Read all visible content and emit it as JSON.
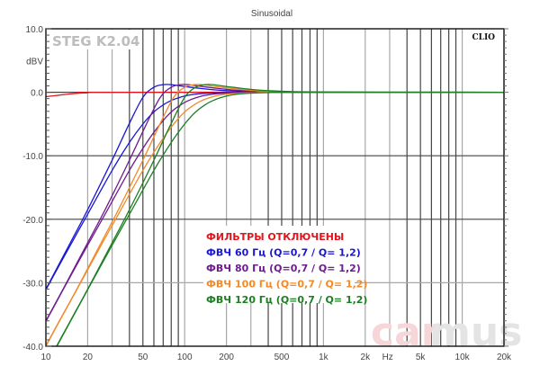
{
  "chart_data": {
    "type": "line",
    "title": "Sinusoidal",
    "ylabel": "dBV",
    "xlabel": "Hz",
    "xscale": "log",
    "xlim": [
      10,
      20000
    ],
    "ylim": [
      -40,
      10
    ],
    "grid": true,
    "y_ticks": [
      {
        "value": 10,
        "label": "10.0"
      },
      {
        "value": 0,
        "label": "0.0"
      },
      {
        "value": -10,
        "label": "-10.0"
      },
      {
        "value": -20,
        "label": "-20.0"
      },
      {
        "value": -30,
        "label": "-30.0"
      },
      {
        "value": -40,
        "label": "-40.0"
      }
    ],
    "y_unit_label": {
      "value": 5,
      "label": "dBV"
    },
    "x_ticks": [
      {
        "value": 10,
        "label": "10"
      },
      {
        "value": 20,
        "label": "20"
      },
      {
        "value": 50,
        "label": "50"
      },
      {
        "value": 100,
        "label": "100"
      },
      {
        "value": 200,
        "label": "200"
      },
      {
        "value": 500,
        "label": "500"
      },
      {
        "value": 1000,
        "label": "1k"
      },
      {
        "value": 2000,
        "label": "2k"
      },
      {
        "value": 5000,
        "label": "5k"
      },
      {
        "value": 10000,
        "label": "10k"
      },
      {
        "value": 20000,
        "label": "20k"
      }
    ],
    "x_unit_label": {
      "value": 2900,
      "label": "Hz"
    },
    "annotations": {
      "top_left": "STEG K2.04",
      "top_right": "CLIO",
      "watermark_a": "car",
      "watermark_b": "mus"
    },
    "legend_position": "center-bottom",
    "legend": [
      {
        "label": "ФИЛЬТРЫ ОТКЛЮЧЕНЫ",
        "color": "#e3141b"
      },
      {
        "label": "ФВЧ 60 Гц (Q=0,7 / Q= 1,2)",
        "color": "#1a17d6"
      },
      {
        "label": "ФВЧ 80 Гц (Q=0,7 / Q= 1,2)",
        "color": "#6e1c8e"
      },
      {
        "label": "ФВЧ 100 Гц (Q=0,7 / Q= 1,2)",
        "color": "#f28a2a"
      },
      {
        "label": "ФВЧ 120 Гц (Q=0,7 / Q= 1,2)",
        "color": "#1c7f22"
      }
    ],
    "series": [
      {
        "name": "filters-off",
        "color": "#e3141b",
        "points": [
          [
            10,
            -0.7
          ],
          [
            12.5,
            -0.45
          ],
          [
            16,
            -0.2
          ],
          [
            20,
            -0.08
          ],
          [
            30,
            0
          ],
          [
            20000,
            0
          ]
        ]
      },
      {
        "name": "hpf-60-q0.7",
        "color": "#1a17d6",
        "points": [
          [
            10,
            -31.1
          ],
          [
            15,
            -24.1
          ],
          [
            20,
            -19.2
          ],
          [
            30,
            -12.3
          ],
          [
            40,
            -7.9
          ],
          [
            50,
            -5.0
          ],
          [
            60,
            -3.1
          ],
          [
            70,
            -2.0
          ],
          [
            80,
            -1.3
          ],
          [
            100,
            -0.6
          ],
          [
            120,
            -0.3
          ],
          [
            150,
            -0.14
          ],
          [
            200,
            -0.05
          ],
          [
            300,
            0
          ],
          [
            500,
            0
          ],
          [
            20000,
            0
          ]
        ]
      },
      {
        "name": "hpf-60-q1.2",
        "color": "#1a17d6",
        "points": [
          [
            10,
            -31.0
          ],
          [
            15,
            -23.7
          ],
          [
            20,
            -18.5
          ],
          [
            30,
            -10.7
          ],
          [
            40,
            -4.9
          ],
          [
            50,
            -0.8
          ],
          [
            60,
            0.8
          ],
          [
            70,
            1.2
          ],
          [
            80,
            1.2
          ],
          [
            100,
            0.9
          ],
          [
            120,
            0.7
          ],
          [
            150,
            0.45
          ],
          [
            200,
            0.25
          ],
          [
            300,
            0.1
          ],
          [
            500,
            0.04
          ],
          [
            1200,
            0
          ],
          [
            20000,
            0
          ]
        ]
      },
      {
        "name": "hpf-80-q0.7",
        "color": "#6e1c8e",
        "points": [
          [
            10,
            -36.1
          ],
          [
            13.3,
            -31.1
          ],
          [
            20,
            -24.1
          ],
          [
            26.7,
            -19.2
          ],
          [
            40,
            -12.3
          ],
          [
            53.3,
            -7.9
          ],
          [
            66.7,
            -5.0
          ],
          [
            80,
            -3.1
          ],
          [
            93.3,
            -2.0
          ],
          [
            106.7,
            -1.3
          ],
          [
            133.3,
            -0.6
          ],
          [
            160,
            -0.3
          ],
          [
            200,
            -0.14
          ],
          [
            266.7,
            -0.05
          ],
          [
            400,
            0
          ],
          [
            20000,
            0
          ]
        ]
      },
      {
        "name": "hpf-80-q1.2",
        "color": "#6e1c8e",
        "points": [
          [
            10,
            -36.0
          ],
          [
            13.3,
            -31.0
          ],
          [
            20,
            -23.7
          ],
          [
            26.7,
            -18.5
          ],
          [
            40,
            -10.7
          ],
          [
            53.3,
            -4.9
          ],
          [
            66.7,
            -0.8
          ],
          [
            80,
            0.8
          ],
          [
            93.3,
            1.2
          ],
          [
            106.7,
            1.2
          ],
          [
            133.3,
            0.9
          ],
          [
            160,
            0.7
          ],
          [
            200,
            0.45
          ],
          [
            266.7,
            0.25
          ],
          [
            400,
            0.1
          ],
          [
            666.7,
            0.04
          ],
          [
            1600,
            0
          ],
          [
            20000,
            0
          ]
        ]
      },
      {
        "name": "hpf-100-q0.7",
        "color": "#f28a2a",
        "points": [
          [
            10,
            -40.0
          ],
          [
            12.5,
            -36.1
          ],
          [
            16.7,
            -31.1
          ],
          [
            25,
            -24.1
          ],
          [
            33.3,
            -19.2
          ],
          [
            50,
            -12.3
          ],
          [
            66.7,
            -7.9
          ],
          [
            83.3,
            -5.0
          ],
          [
            100,
            -3.1
          ],
          [
            116.7,
            -2.0
          ],
          [
            133.3,
            -1.3
          ],
          [
            166.7,
            -0.6
          ],
          [
            200,
            -0.3
          ],
          [
            250,
            -0.14
          ],
          [
            333,
            -0.05
          ],
          [
            500,
            0
          ],
          [
            20000,
            0
          ]
        ]
      },
      {
        "name": "hpf-100-q1.2",
        "color": "#f28a2a",
        "points": [
          [
            10,
            -39.9
          ],
          [
            12.5,
            -36.0
          ],
          [
            16.7,
            -31.0
          ],
          [
            25,
            -23.7
          ],
          [
            33.3,
            -18.5
          ],
          [
            50,
            -10.7
          ],
          [
            66.7,
            -4.9
          ],
          [
            83.3,
            -0.8
          ],
          [
            100,
            0.8
          ],
          [
            116.7,
            1.2
          ],
          [
            133.3,
            1.2
          ],
          [
            166.7,
            0.9
          ],
          [
            200,
            0.7
          ],
          [
            250,
            0.45
          ],
          [
            333,
            0.25
          ],
          [
            500,
            0.1
          ],
          [
            833,
            0.04
          ],
          [
            2000,
            0
          ],
          [
            20000,
            0
          ]
        ]
      },
      {
        "name": "hpf-120-q0.7",
        "color": "#1c7f22",
        "points": [
          [
            9.6,
            -43.9
          ],
          [
            12,
            -40.0
          ],
          [
            15,
            -36.1
          ],
          [
            20,
            -31.1
          ],
          [
            30,
            -24.1
          ],
          [
            40,
            -19.2
          ],
          [
            60,
            -12.3
          ],
          [
            80,
            -7.9
          ],
          [
            100,
            -5.0
          ],
          [
            120,
            -3.1
          ],
          [
            140,
            -2.0
          ],
          [
            160,
            -1.3
          ],
          [
            200,
            -0.6
          ],
          [
            240,
            -0.3
          ],
          [
            300,
            -0.14
          ],
          [
            400,
            -0.05
          ],
          [
            600,
            0
          ],
          [
            20000,
            0
          ]
        ]
      },
      {
        "name": "hpf-120-q1.2",
        "color": "#1c7f22",
        "points": [
          [
            9.6,
            -43.9
          ],
          [
            12,
            -39.9
          ],
          [
            15,
            -36.0
          ],
          [
            20,
            -31.0
          ],
          [
            30,
            -23.7
          ],
          [
            40,
            -18.5
          ],
          [
            60,
            -10.7
          ],
          [
            80,
            -4.9
          ],
          [
            100,
            -0.8
          ],
          [
            120,
            0.8
          ],
          [
            140,
            1.2
          ],
          [
            160,
            1.2
          ],
          [
            200,
            0.9
          ],
          [
            240,
            0.7
          ],
          [
            300,
            0.45
          ],
          [
            400,
            0.25
          ],
          [
            600,
            0.1
          ],
          [
            1000,
            0.04
          ],
          [
            2400,
            0
          ],
          [
            20000,
            0
          ]
        ]
      }
    ]
  }
}
